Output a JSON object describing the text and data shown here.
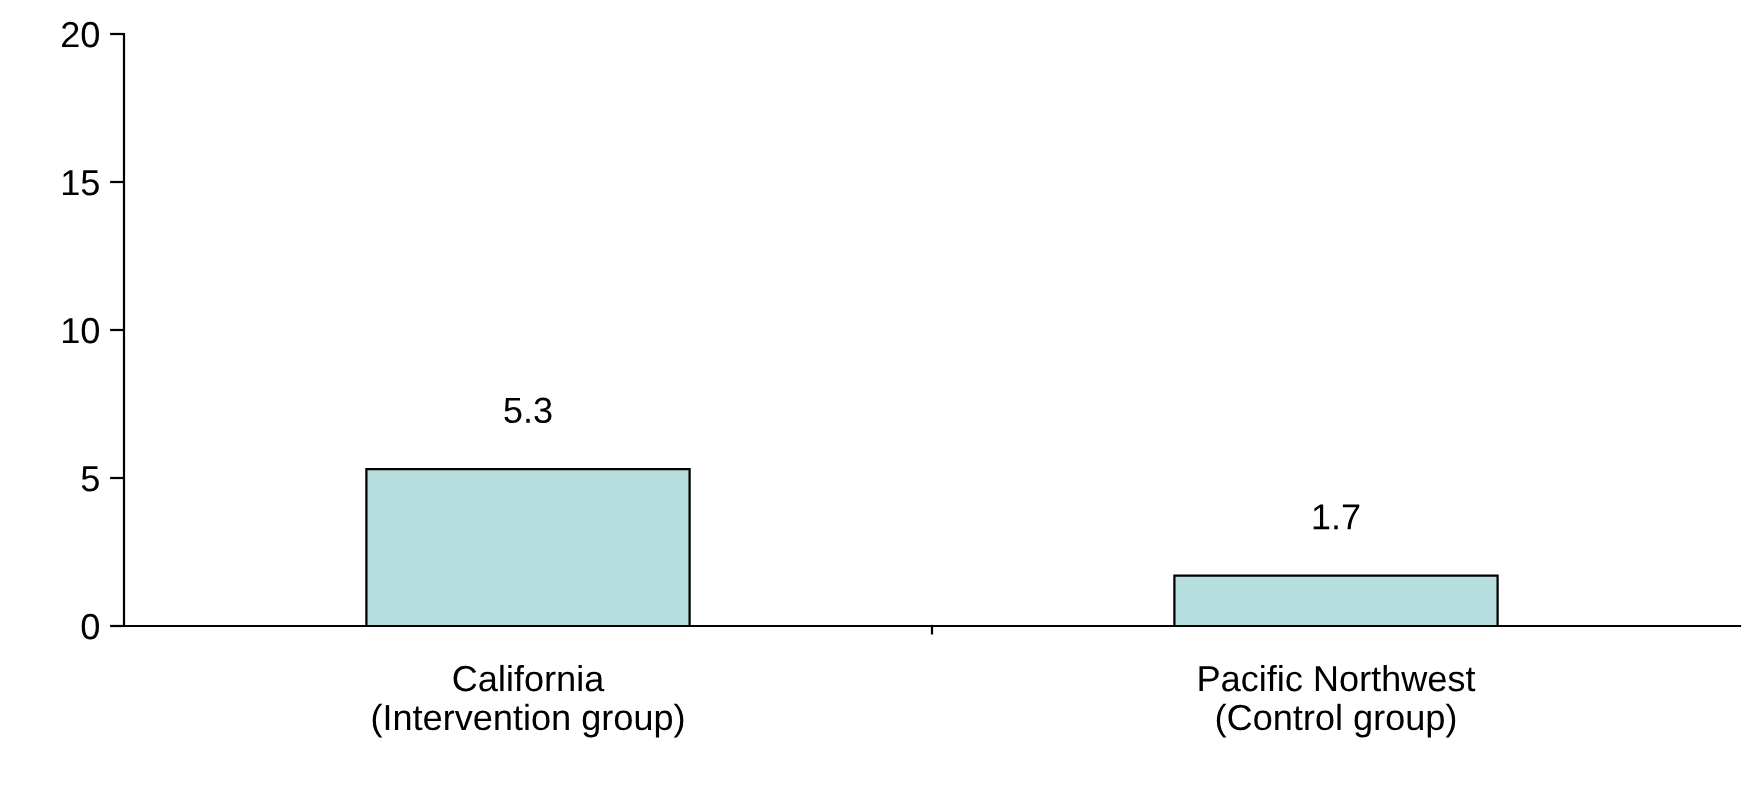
{
  "chart_data": {
    "type": "bar",
    "categories": [
      "California\n(Intervention group)",
      "Pacific Northwest\n(Control group)"
    ],
    "values": [
      5.3,
      1.7
    ],
    "color": "#b7dfe0",
    "ylim": [
      0,
      20
    ],
    "yticks": [
      0,
      5,
      10,
      15,
      20
    ],
    "grid": false,
    "data_labels": true
  }
}
